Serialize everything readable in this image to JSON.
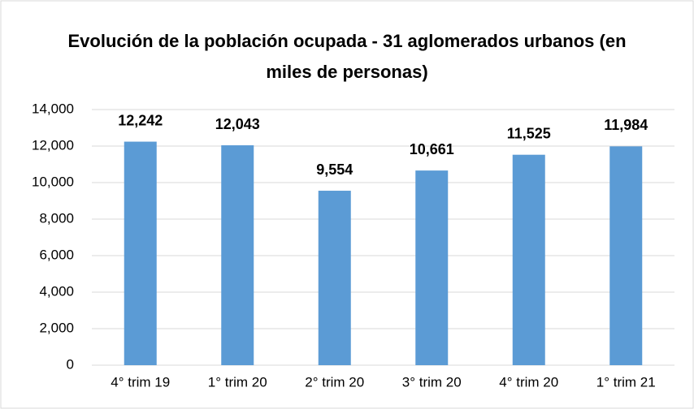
{
  "chart_data": {
    "type": "bar",
    "title": "Evolución de la población ocupada - 31 aglomerados urbanos (en miles de personas)",
    "categories": [
      "4° trim 19",
      "1° trim 20",
      "2° trim 20",
      "3° trim 20",
      "4° trim 20",
      "1° trim 21"
    ],
    "values": [
      12242,
      12043,
      9554,
      10661,
      11525,
      11984
    ],
    "value_labels": [
      "12,242",
      "12,043",
      "9,554",
      "10,661",
      "11,525",
      "11,984"
    ],
    "color": "#5b9bd5",
    "ylim": [
      0,
      14000
    ],
    "yticks": [
      0,
      {
        "value": 2000,
        "label": "2,000"
      },
      {
        "value": 4000,
        "label": "4,000"
      },
      {
        "value": 6000,
        "label": "6,000"
      },
      {
        "value": 8000,
        "label": "8,000"
      },
      {
        "value": 10000,
        "label": "10,000"
      },
      {
        "value": 12000,
        "label": "12,000"
      },
      {
        "value": 14000,
        "label": "14,000"
      }
    ],
    "grid": true
  }
}
